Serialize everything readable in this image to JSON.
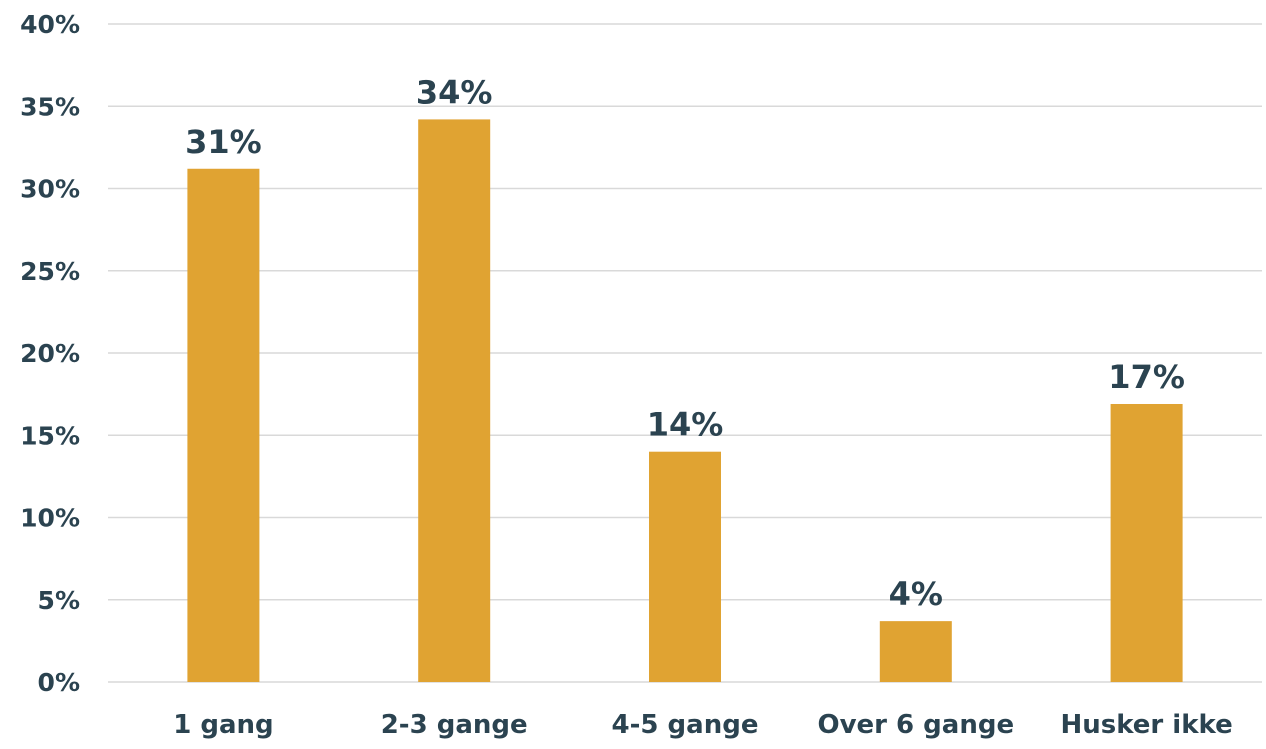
{
  "chart_data": {
    "type": "bar",
    "title": "",
    "xlabel": "",
    "ylabel": "",
    "categories": [
      "1 gang",
      "2-3 gange",
      "4-5 gange",
      "Over 6 gange",
      "Husker ikke"
    ],
    "values": [
      31.2,
      34.2,
      14.0,
      3.7,
      16.9
    ],
    "data_labels": [
      "31%",
      "34%",
      "14%",
      "4%",
      "17%"
    ],
    "ylim": [
      0,
      40
    ],
    "yticks": [
      0,
      5,
      10,
      15,
      20,
      25,
      30,
      35,
      40
    ],
    "ytick_labels": [
      "0%",
      "5%",
      "10%",
      "15%",
      "20%",
      "25%",
      "30%",
      "35%",
      "40%"
    ],
    "grid": true,
    "legend": "none",
    "colors": {
      "bar": "#E0A332",
      "text": "#2B4350",
      "grid": "#D9D9D9"
    }
  }
}
